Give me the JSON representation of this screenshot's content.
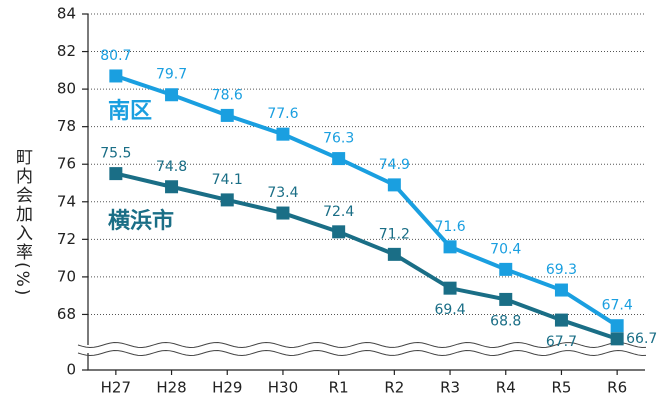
{
  "chart_data": {
    "type": "line",
    "y_label": "町内会加入率(%)",
    "categories": [
      "H27",
      "H28",
      "H29",
      "H30",
      "R1",
      "R2",
      "R3",
      "R4",
      "R5",
      "R6"
    ],
    "series": [
      {
        "name": "南区",
        "color": "#1a9fe0",
        "values": [
          80.7,
          79.7,
          78.6,
          77.6,
          76.3,
          74.9,
          71.6,
          70.4,
          69.3,
          67.4
        ]
      },
      {
        "name": "横浜市",
        "color": "#1a6e86",
        "values": [
          75.5,
          74.8,
          74.1,
          73.4,
          72.4,
          71.2,
          69.4,
          68.8,
          67.7,
          66.7
        ]
      }
    ],
    "ylim": [
      0,
      84
    ],
    "yticks": [
      0,
      68,
      70,
      72,
      74,
      76,
      78,
      80,
      82,
      84
    ],
    "axis_break": true,
    "grid": true
  }
}
